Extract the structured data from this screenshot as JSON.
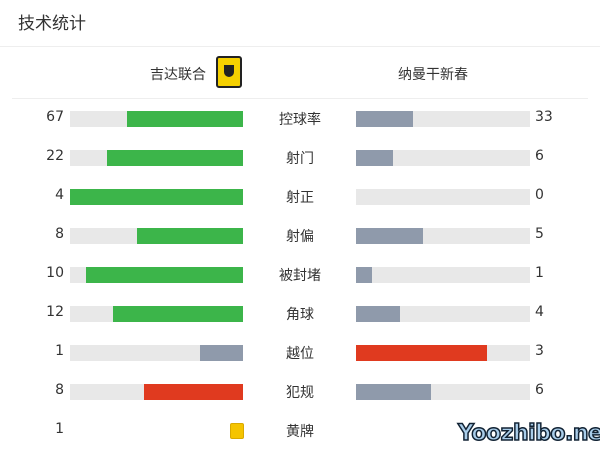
{
  "title": "技术统计",
  "home": {
    "name": "吉达联合"
  },
  "away": {
    "name": "纳曼干新春"
  },
  "colors": {
    "green": "#3cb54a",
    "gray": "#8f9aab",
    "red": "#e03a1f",
    "track": "#e8e8e8",
    "yellow": "#f5c400"
  },
  "stats": [
    {
      "label": "控球率",
      "home": "67",
      "away": "33",
      "hc": "green",
      "ac": "gray"
    },
    {
      "label": "射门",
      "home": "22",
      "away": "6",
      "hc": "green",
      "ac": "gray"
    },
    {
      "label": "射正",
      "home": "4",
      "away": "0",
      "hc": "green",
      "ac": "gray"
    },
    {
      "label": "射偏",
      "home": "8",
      "away": "5",
      "hc": "green",
      "ac": "gray"
    },
    {
      "label": "被封堵",
      "home": "10",
      "away": "1",
      "hc": "green",
      "ac": "gray"
    },
    {
      "label": "角球",
      "home": "12",
      "away": "4",
      "hc": "green",
      "ac": "gray"
    },
    {
      "label": "越位",
      "home": "1",
      "away": "3",
      "hc": "gray",
      "ac": "red"
    },
    {
      "label": "犯规",
      "home": "8",
      "away": "6",
      "hc": "red",
      "ac": "gray"
    },
    {
      "label": "黄牌",
      "home": "1",
      "away": "",
      "card": true
    }
  ],
  "watermark": "Yoozhibo.net"
}
